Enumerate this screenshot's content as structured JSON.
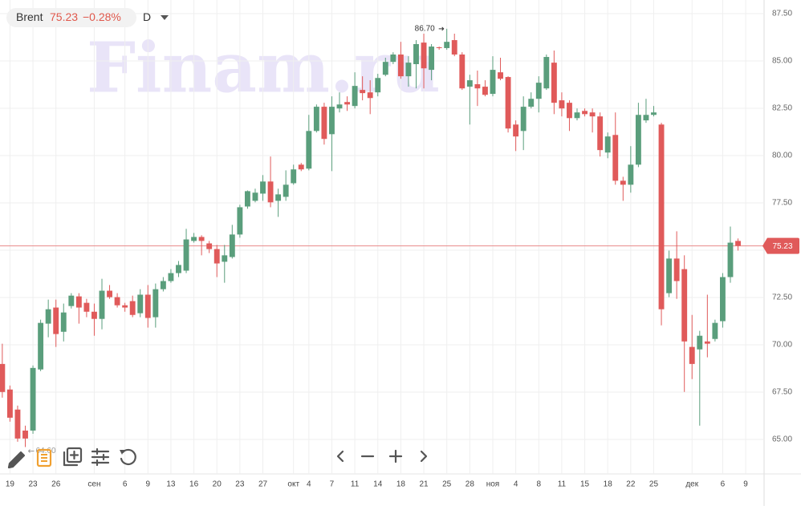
{
  "chart_data": {
    "type": "candlestick",
    "symbol": "Brent",
    "last_price": 75.23,
    "change": {
      "value": -0.28,
      "label": "−0.28%"
    },
    "interval": "D",
    "watermark": "Finam.ru",
    "up_color": "#5a9e7c",
    "down_color": "#e05a5a",
    "price_line_color": "#e88a8a",
    "grid": true,
    "xlim": [
      -0.3,
      99.4
    ],
    "ylim": [
      63.18,
      88.22
    ],
    "yticks": [
      {
        "value": 65,
        "label": "65.00"
      },
      {
        "value": 67.5,
        "label": "67.50"
      },
      {
        "value": 70,
        "label": "70.00"
      },
      {
        "value": 72.5,
        "label": "72.50"
      },
      {
        "value": 75,
        "label": "75.00"
      },
      {
        "value": 77.5,
        "label": "77.50"
      },
      {
        "value": 80,
        "label": "80.00"
      },
      {
        "value": 82.5,
        "label": "82.50"
      },
      {
        "value": 85,
        "label": "85.00"
      },
      {
        "value": 87.5,
        "label": "87.50"
      }
    ],
    "xticks": [
      {
        "value": 1,
        "label": "19"
      },
      {
        "value": 4,
        "label": "23"
      },
      {
        "value": 7,
        "label": "26"
      },
      {
        "value": 12,
        "label": "сен"
      },
      {
        "value": 16,
        "label": "6"
      },
      {
        "value": 19,
        "label": "9"
      },
      {
        "value": 22,
        "label": "13"
      },
      {
        "value": 25,
        "label": "16"
      },
      {
        "value": 28,
        "label": "20"
      },
      {
        "value": 31,
        "label": "23"
      },
      {
        "value": 34,
        "label": "27"
      },
      {
        "value": 38,
        "label": "окт"
      },
      {
        "value": 40,
        "label": "4"
      },
      {
        "value": 43,
        "label": "7"
      },
      {
        "value": 46,
        "label": "11"
      },
      {
        "value": 49,
        "label": "14"
      },
      {
        "value": 52,
        "label": "18"
      },
      {
        "value": 55,
        "label": "21"
      },
      {
        "value": 58,
        "label": "25"
      },
      {
        "value": 61,
        "label": "28"
      },
      {
        "value": 64,
        "label": "ноя"
      },
      {
        "value": 67,
        "label": "4"
      },
      {
        "value": 70,
        "label": "8"
      },
      {
        "value": 73,
        "label": "11"
      },
      {
        "value": 76,
        "label": "15"
      },
      {
        "value": 79,
        "label": "18"
      },
      {
        "value": 82,
        "label": "22"
      },
      {
        "value": 85,
        "label": "25"
      },
      {
        "value": 90,
        "label": "дек"
      },
      {
        "value": 94,
        "label": "6"
      },
      {
        "value": 97,
        "label": "9"
      }
    ],
    "high_marker": {
      "value": 86.7,
      "label": "86.70"
    },
    "low_marker": {
      "value": 64.6,
      "label": "64.60"
    },
    "ohlc": [
      [
        68.99,
        70.06,
        67.21,
        67.51
      ],
      [
        67.64,
        67.85,
        65.94,
        66.15
      ],
      [
        66.58,
        66.79,
        64.88,
        65.05
      ],
      [
        65.47,
        65.73,
        64.6,
        65.05
      ],
      [
        65.47,
        68.91,
        65.3,
        68.78
      ],
      [
        68.7,
        71.33,
        68.61,
        71.16
      ],
      [
        71.12,
        72.39,
        70.4,
        71.88
      ],
      [
        71.97,
        72.39,
        69.89,
        70.57
      ],
      [
        70.69,
        72.18,
        70.18,
        71.71
      ],
      [
        72.05,
        72.73,
        71.92,
        72.6
      ],
      [
        72.56,
        72.73,
        71.12,
        71.97
      ],
      [
        72.22,
        72.43,
        71.46,
        71.75
      ],
      [
        71.75,
        72.18,
        70.48,
        71.37
      ],
      [
        71.37,
        73.49,
        70.82,
        72.86
      ],
      [
        72.86,
        73.16,
        72.43,
        72.52
      ],
      [
        72.52,
        72.73,
        71.97,
        72.09
      ],
      [
        72.09,
        72.22,
        71.75,
        71.97
      ],
      [
        72.31,
        72.6,
        71.46,
        71.58
      ],
      [
        71.67,
        72.94,
        71.46,
        72.65
      ],
      [
        72.65,
        73.16,
        70.91,
        71.42
      ],
      [
        71.46,
        73.24,
        70.91,
        72.94
      ],
      [
        72.94,
        73.58,
        72.82,
        73.37
      ],
      [
        73.37,
        74.0,
        73.28,
        73.79
      ],
      [
        73.79,
        74.43,
        73.58,
        74.22
      ],
      [
        73.92,
        76.13,
        73.79,
        75.57
      ],
      [
        75.49,
        75.91,
        75.4,
        75.7
      ],
      [
        75.7,
        75.79,
        74.73,
        75.49
      ],
      [
        75.36,
        75.49,
        74.85,
        75.06
      ],
      [
        75.06,
        75.28,
        73.58,
        74.3
      ],
      [
        74.39,
        75.28,
        73.28,
        74.73
      ],
      [
        74.64,
        76.34,
        74.56,
        75.83
      ],
      [
        75.83,
        77.4,
        75.66,
        77.27
      ],
      [
        77.31,
        78.16,
        77.19,
        78.12
      ],
      [
        77.61,
        78.25,
        77.53,
        78.04
      ],
      [
        77.99,
        78.97,
        77.61,
        78.63
      ],
      [
        78.63,
        79.95,
        77.27,
        77.53
      ],
      [
        77.61,
        78.25,
        76.76,
        77.95
      ],
      [
        77.82,
        79.22,
        77.61,
        78.46
      ],
      [
        78.54,
        79.52,
        78.46,
        79.27
      ],
      [
        79.52,
        79.61,
        79.18,
        79.27
      ],
      [
        79.31,
        82.15,
        79.22,
        81.3
      ],
      [
        81.3,
        82.7,
        81.22,
        82.58
      ],
      [
        82.58,
        82.79,
        80.58,
        80.88
      ],
      [
        81.13,
        83.13,
        79.18,
        82.58
      ],
      [
        82.49,
        83.34,
        82.28,
        82.7
      ],
      [
        82.83,
        83.13,
        82.36,
        82.7
      ],
      [
        82.62,
        84.4,
        82.49,
        83.68
      ],
      [
        83.47,
        84.19,
        82.92,
        83.3
      ],
      [
        83.34,
        83.98,
        82.19,
        83.04
      ],
      [
        83.34,
        84.32,
        83.13,
        84.1
      ],
      [
        84.27,
        85.17,
        84.19,
        84.95
      ],
      [
        84.95,
        85.46,
        84.83,
        85.34
      ],
      [
        85.34,
        86.01,
        84.06,
        84.19
      ],
      [
        84.19,
        85.25,
        83.64,
        84.91
      ],
      [
        84.83,
        86.1,
        83.55,
        85.89
      ],
      [
        85.97,
        86.44,
        83.55,
        84.61
      ],
      [
        84.53,
        85.89,
        83.98,
        85.76
      ],
      [
        85.72,
        85.76,
        85.59,
        85.68
      ],
      [
        85.68,
        86.7,
        85.59,
        86.01
      ],
      [
        86.1,
        86.44,
        85.25,
        85.34
      ],
      [
        85.34,
        85.46,
        83.47,
        83.55
      ],
      [
        83.64,
        84.27,
        81.64,
        83.98
      ],
      [
        83.77,
        84.49,
        82.62,
        83.55
      ],
      [
        83.64,
        83.98,
        83.13,
        83.21
      ],
      [
        83.26,
        85.25,
        83.13,
        84.53
      ],
      [
        84.4,
        85.17,
        83.98,
        84.06
      ],
      [
        84.15,
        84.19,
        81.22,
        81.43
      ],
      [
        81.64,
        81.86,
        80.24,
        81.01
      ],
      [
        81.3,
        83.13,
        80.29,
        82.58
      ],
      [
        82.58,
        83.34,
        82.49,
        83.0
      ],
      [
        83.0,
        84.19,
        82.28,
        83.85
      ],
      [
        83.55,
        85.34,
        83.47,
        85.21
      ],
      [
        84.91,
        85.55,
        82.19,
        82.79
      ],
      [
        82.92,
        83.34,
        82.07,
        82.49
      ],
      [
        82.79,
        82.92,
        81.3,
        81.98
      ],
      [
        81.98,
        82.49,
        81.86,
        82.28
      ],
      [
        82.36,
        82.49,
        82.07,
        82.19
      ],
      [
        82.28,
        82.49,
        81.22,
        82.07
      ],
      [
        82.07,
        82.28,
        79.95,
        80.29
      ],
      [
        80.16,
        81.22,
        79.86,
        81.01
      ],
      [
        81.09,
        82.28,
        78.46,
        78.67
      ],
      [
        78.67,
        78.88,
        77.61,
        78.46
      ],
      [
        78.46,
        80.5,
        78.04,
        79.52
      ],
      [
        79.52,
        82.79,
        79.39,
        82.15
      ],
      [
        81.86,
        83.0,
        81.73,
        82.15
      ],
      [
        82.15,
        82.62,
        82.07,
        82.28
      ],
      [
        81.64,
        81.73,
        71.03,
        71.88
      ],
      [
        72.73,
        74.98,
        72.52,
        74.56
      ],
      [
        74.56,
        76.0,
        72.43,
        73.37
      ],
      [
        74.0,
        74.73,
        67.51,
        70.18
      ],
      [
        69.89,
        71.58,
        68.19,
        68.99
      ],
      [
        69.76,
        70.74,
        65.73,
        70.48
      ],
      [
        70.18,
        72.65,
        69.34,
        70.06
      ],
      [
        70.31,
        71.33,
        70.18,
        71.16
      ],
      [
        71.25,
        73.79,
        70.91,
        73.58
      ],
      [
        73.58,
        76.25,
        73.28,
        75.4
      ],
      [
        75.49,
        75.62,
        74.98,
        75.23
      ]
    ]
  }
}
